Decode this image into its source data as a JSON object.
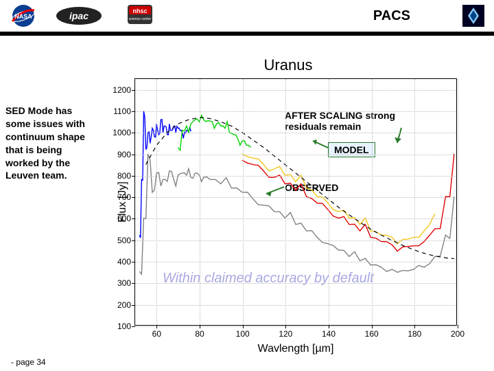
{
  "header": {
    "pacs": "PACS"
  },
  "notes": {
    "left": "SED Mode has some issues with continuum shape that is being worked by the Leuven team."
  },
  "annotations": {
    "scaling": "AFTER SCALING strong residuals remain",
    "model": "MODEL",
    "observed": "OBSERVED"
  },
  "chart": {
    "type": "line",
    "title": "Uranus",
    "xlabel": "Wavlength [µm]",
    "ylabel": "Flux [Jy]",
    "xlim": [
      50,
      200
    ],
    "ylim": [
      100,
      1250
    ],
    "xticks": [
      60,
      80,
      100,
      120,
      140,
      160,
      180,
      200
    ],
    "yticks": [
      100,
      200,
      300,
      400,
      500,
      600,
      700,
      800,
      900,
      1000,
      1100,
      1200
    ],
    "grid_color": "#bbbbbb",
    "background_color": "#ffffff",
    "accuracy_text": "Within claimed accuracy by default",
    "title_fontsize": 22,
    "label_fontsize": 16,
    "tick_fontsize": 12,
    "series": [
      {
        "name": "observed_gray",
        "color": "#808080",
        "line_width": 1.4,
        "x": [
          52,
          54,
          56,
          58,
          60,
          62,
          64,
          66,
          68,
          70,
          72,
          74,
          76,
          78,
          80,
          82,
          85,
          90,
          95,
          100,
          105,
          110,
          115,
          120,
          125,
          130,
          135,
          140,
          145,
          150,
          155,
          160,
          165,
          170,
          175,
          180,
          185,
          190,
          195,
          199
        ],
        "y": [
          350,
          600,
          900,
          720,
          810,
          750,
          780,
          820,
          780,
          800,
          810,
          800,
          790,
          810,
          800,
          790,
          780,
          760,
          740,
          720,
          690,
          660,
          630,
          600,
          570,
          540,
          510,
          480,
          450,
          420,
          400,
          380,
          370,
          360,
          355,
          360,
          370,
          420,
          520,
          700
        ]
      },
      {
        "name": "scaled_blue",
        "color": "#0000ff",
        "line_width": 1.4,
        "x": [
          52,
          53,
          54,
          55,
          56,
          57,
          58,
          59,
          60,
          61,
          62,
          63,
          64,
          65,
          66,
          67,
          68,
          69,
          70,
          71,
          72,
          73,
          74,
          75,
          76
        ],
        "y": [
          520,
          780,
          1100,
          920,
          1000,
          950,
          1020,
          980,
          1040,
          990,
          1060,
          1000,
          1030,
          990,
          1040,
          1010,
          1030,
          1000,
          1020,
          1010,
          1000,
          1000,
          1010,
          1000,
          1005
        ]
      },
      {
        "name": "scaled_green",
        "color": "#00d000",
        "line_width": 1.4,
        "x": [
          70,
          72,
          74,
          76,
          78,
          80,
          82,
          84,
          86,
          88,
          90,
          92,
          94,
          96,
          98,
          100,
          102,
          104
        ],
        "y": [
          930,
          1010,
          1030,
          1040,
          1060,
          1050,
          1060,
          1055,
          1050,
          1040,
          1030,
          1020,
          1000,
          990,
          970,
          960,
          940,
          930
        ]
      },
      {
        "name": "scaled_yellow",
        "color": "#f5c518",
        "line_width": 1.4,
        "x": [
          100,
          105,
          110,
          115,
          120,
          125,
          130,
          135,
          140,
          145,
          150,
          155,
          160,
          165,
          170,
          175,
          180,
          185,
          190
        ],
        "y": [
          900,
          880,
          850,
          830,
          800,
          770,
          740,
          700,
          670,
          630,
          600,
          570,
          540,
          520,
          510,
          500,
          510,
          540,
          620
        ]
      },
      {
        "name": "scaled_red",
        "color": "#e00000",
        "line_width": 1.4,
        "x": [
          100,
          105,
          110,
          115,
          120,
          125,
          130,
          135,
          140,
          145,
          150,
          155,
          160,
          165,
          170,
          175,
          180,
          185,
          190,
          195,
          199
        ],
        "y": [
          870,
          850,
          820,
          790,
          760,
          730,
          700,
          670,
          640,
          600,
          570,
          540,
          510,
          490,
          475,
          465,
          470,
          490,
          550,
          700,
          900
        ]
      },
      {
        "name": "model_dash",
        "color": "#000000",
        "line_width": 1.2,
        "dash": "6,5",
        "x": [
          55,
          60,
          65,
          70,
          75,
          80,
          85,
          90,
          95,
          100,
          105,
          110,
          115,
          120,
          125,
          130,
          135,
          140,
          145,
          150,
          155,
          160,
          165,
          170,
          175,
          180,
          185,
          190,
          195,
          199
        ],
        "y": [
          850,
          940,
          1000,
          1040,
          1060,
          1070,
          1065,
          1050,
          1030,
          1000,
          965,
          930,
          890,
          850,
          810,
          770,
          730,
          690,
          650,
          615,
          580,
          548,
          520,
          495,
          472,
          452,
          435,
          422,
          414,
          410
        ]
      }
    ]
  },
  "footer": {
    "page": "- page 34"
  },
  "colors": {
    "header_bar": "#000000"
  }
}
